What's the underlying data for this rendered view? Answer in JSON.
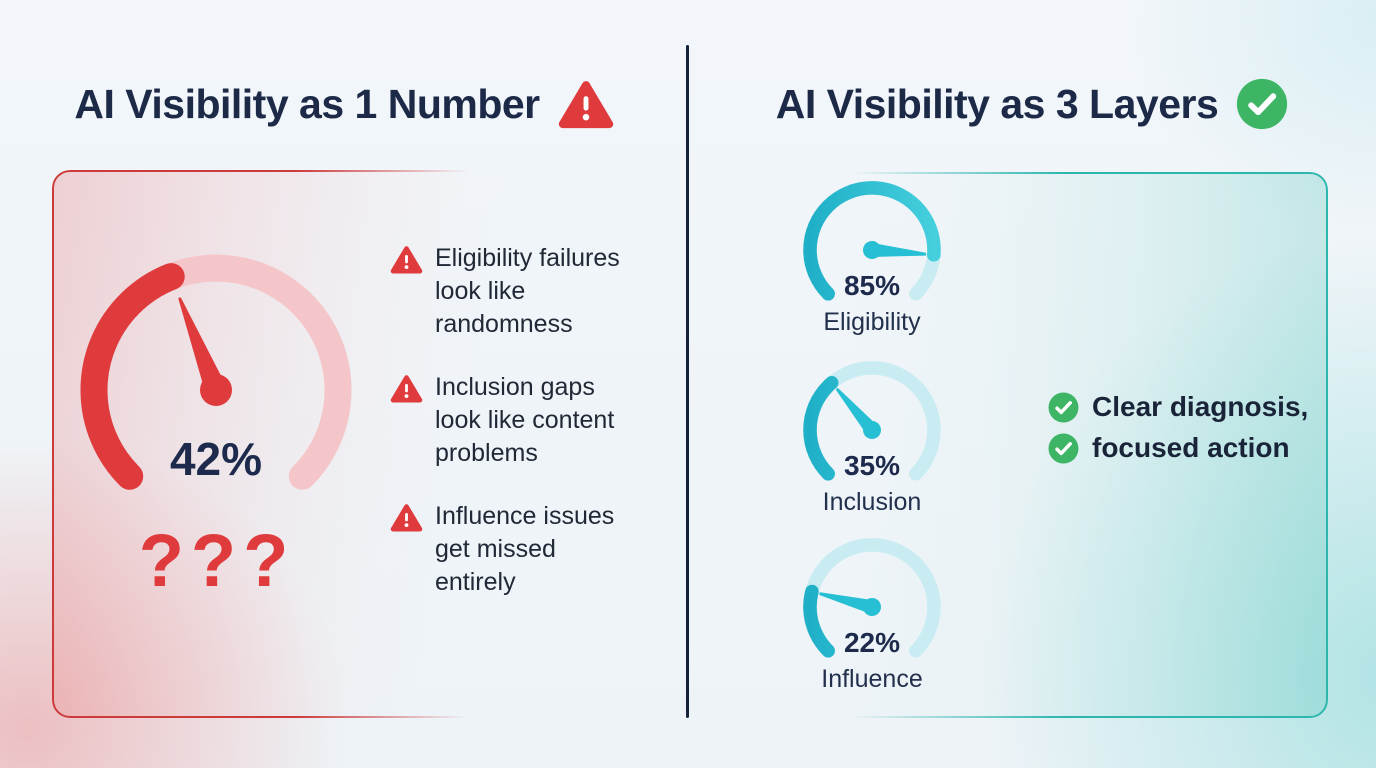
{
  "left_panel": {
    "title": "AI Visibility as 1 Number",
    "title_icon": "warning-triangle-icon",
    "gauge": {
      "value": 42,
      "display": "42%"
    },
    "mystery_text": "???",
    "bullets": [
      {
        "lines": [
          "Eligibility failures",
          "look like",
          "randomness"
        ]
      },
      {
        "lines": [
          "Inclusion gaps",
          "look like content",
          "problems"
        ]
      },
      {
        "lines": [
          "Influence issues",
          "get missed",
          "entirely"
        ]
      }
    ]
  },
  "right_panel": {
    "title": "AI Visibility as 3 Layers",
    "title_icon": "check-circle-icon",
    "gauges": [
      {
        "value": 85,
        "display": "85%",
        "label": "Eligibility"
      },
      {
        "value": 35,
        "display": "35%",
        "label": "Inclusion"
      },
      {
        "value": 22,
        "display": "22%",
        "label": "Influence"
      }
    ],
    "benefits": [
      "Clear diagnosis,",
      "focused action"
    ]
  },
  "icons": {
    "warning": "warning-triangle-icon",
    "check": "check-circle-icon"
  },
  "colors": {
    "danger": "#e03b3c",
    "danger_track": "#f4c6c9",
    "danger_border": "#cc3a3a",
    "cyan": "#26bfd3",
    "cyan_grad_start": "#1fb0c8",
    "cyan_grad_end": "#45cfdd",
    "cyan_track": "#c9ecf3",
    "teal_border": "#2cb6ae",
    "success": "#3db564",
    "navy": "#1d2a4c",
    "title_navy": "#1c2947",
    "text_dark": "#212836",
    "divider": "#15223c"
  },
  "chart_data": [
    {
      "type": "gauge",
      "title": "AI Visibility as 1 Number",
      "value": 42,
      "unit": "%",
      "range": [
        0,
        100
      ],
      "color": "#e03b3c",
      "annotation": "???"
    },
    {
      "type": "gauge",
      "title": "Eligibility",
      "value": 85,
      "unit": "%",
      "range": [
        0,
        100
      ],
      "color": "#26bfd3"
    },
    {
      "type": "gauge",
      "title": "Inclusion",
      "value": 35,
      "unit": "%",
      "range": [
        0,
        100
      ],
      "color": "#26bfd3"
    },
    {
      "type": "gauge",
      "title": "Influence",
      "value": 22,
      "unit": "%",
      "range": [
        0,
        100
      ],
      "color": "#26bfd3"
    }
  ]
}
